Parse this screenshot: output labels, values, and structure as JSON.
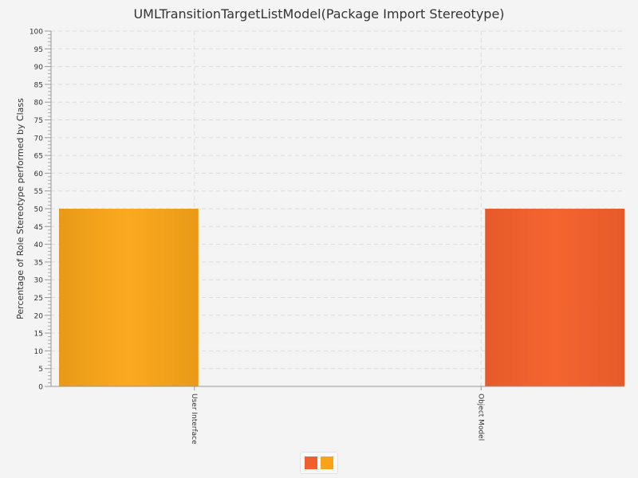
{
  "chart_data": {
    "type": "bar",
    "title": "UMLTransitionTargetListModel(Package Import Stereotype)",
    "xlabel": "",
    "ylabel": "Percentage of Role Stereotype performed by Class",
    "ylim": [
      0,
      100
    ],
    "y_major_step": 5,
    "y_minor_step": 1,
    "grid": true,
    "categories": [
      "User Interface",
      "Object Model"
    ],
    "series": [
      {
        "color": "#f9a21b",
        "values": [
          50,
          null
        ]
      },
      {
        "color": "#f0602e",
        "values": [
          null,
          50
        ]
      }
    ],
    "legend": {
      "position": "bottom-center",
      "entries": [
        {
          "color": "#f0602e"
        },
        {
          "color": "#f9a21b"
        }
      ]
    }
  }
}
